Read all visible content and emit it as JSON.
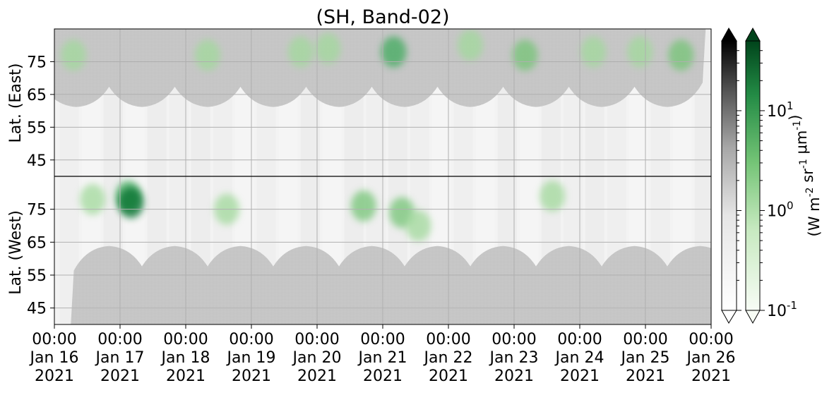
{
  "chart_data": {
    "type": "heatmap",
    "title": "(SH, Band-02)",
    "ylabel_top": "Lat. (East)",
    "ylabel_bottom": "Lat. (West)",
    "colorbar_label": "(W m^-2 sr^-1 μm^-1)",
    "colorbar_scale": "log",
    "colorbar_range": [
      0.1,
      50
    ],
    "colorbar_ticks": [
      "10^1",
      "10^0",
      "10^-1"
    ],
    "colormaps": [
      "Greys",
      "Greens"
    ],
    "colorbar_extend": "both",
    "y_ticks_east": [
      "45",
      "55",
      "65",
      "75"
    ],
    "y_ticks_west": [
      "75",
      "65",
      "55",
      "45"
    ],
    "x_ticks": [
      {
        "time": "00:00",
        "date": "Jan 16",
        "year": "2021"
      },
      {
        "time": "00:00",
        "date": "Jan 17",
        "year": "2021"
      },
      {
        "time": "00:00",
        "date": "Jan 18",
        "year": "2021"
      },
      {
        "time": "00:00",
        "date": "Jan 19",
        "year": "2021"
      },
      {
        "time": "00:00",
        "date": "Jan 20",
        "year": "2021"
      },
      {
        "time": "00:00",
        "date": "Jan 21",
        "year": "2021"
      },
      {
        "time": "00:00",
        "date": "Jan 22",
        "year": "2021"
      },
      {
        "time": "00:00",
        "date": "Jan 23",
        "year": "2021"
      },
      {
        "time": "00:00",
        "date": "Jan 24",
        "year": "2021"
      },
      {
        "time": "00:00",
        "date": "Jan 25",
        "year": "2021"
      },
      {
        "time": "00:00",
        "date": "Jan 26",
        "year": "2021"
      }
    ],
    "x_range": [
      "2021-01-16 00:00",
      "2021-01-26 00:00"
    ],
    "y_range_east": [
      40,
      85
    ],
    "y_range_west": [
      85,
      40
    ],
    "grid": true,
    "daylight_peaks_east_hours": [
      8,
      32,
      56,
      80,
      104,
      128,
      152,
      176,
      200,
      224
    ],
    "daylight_peaks_west_hours": [
      20,
      44,
      68,
      92,
      116,
      140,
      164,
      188,
      212,
      236
    ],
    "aurora_patches": [
      {
        "hours": 7,
        "lat": 77,
        "side": "east",
        "intensity": 2.0
      },
      {
        "hours": 14,
        "lat": 78,
        "side": "west",
        "intensity": 1.5
      },
      {
        "hours": 27,
        "lat": 79,
        "side": "west",
        "intensity": 4.0
      },
      {
        "hours": 28,
        "lat": 77,
        "side": "west",
        "intensity": 12.0
      },
      {
        "hours": 56,
        "lat": 77,
        "side": "east",
        "intensity": 1.5
      },
      {
        "hours": 63,
        "lat": 75,
        "side": "west",
        "intensity": 1.8
      },
      {
        "hours": 90,
        "lat": 78,
        "side": "east",
        "intensity": 1.2
      },
      {
        "hours": 100,
        "lat": 79,
        "side": "east",
        "intensity": 1.8
      },
      {
        "hours": 113,
        "lat": 76,
        "side": "west",
        "intensity": 2.5
      },
      {
        "hours": 124,
        "lat": 78,
        "side": "east",
        "intensity": 4.5
      },
      {
        "hours": 127,
        "lat": 74,
        "side": "west",
        "intensity": 3.0
      },
      {
        "hours": 133,
        "lat": 70,
        "side": "west",
        "intensity": 2.0
      },
      {
        "hours": 152,
        "lat": 80,
        "side": "east",
        "intensity": 1.2
      },
      {
        "hours": 172,
        "lat": 77,
        "side": "east",
        "intensity": 2.5
      },
      {
        "hours": 182,
        "lat": 79,
        "side": "west",
        "intensity": 1.5
      },
      {
        "hours": 197,
        "lat": 78,
        "side": "east",
        "intensity": 1.5
      },
      {
        "hours": 214,
        "lat": 78,
        "side": "east",
        "intensity": 1.2
      },
      {
        "hours": 229,
        "lat": 77,
        "side": "east",
        "intensity": 2.5
      }
    ]
  }
}
